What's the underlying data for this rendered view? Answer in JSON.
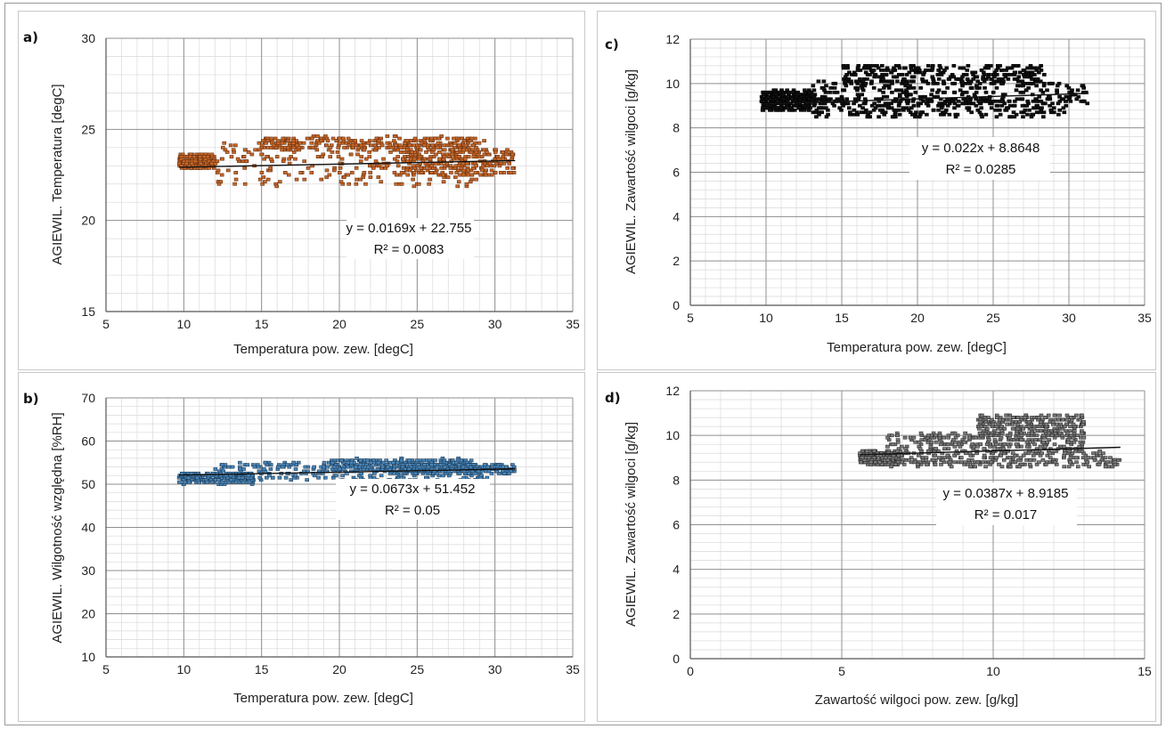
{
  "chart_data": [
    {
      "panel_label": "a)",
      "type": "scatter",
      "xlabel": "Temperatura pow. zew. [degC]",
      "ylabel": "AGIEWIL. Temperatura [degC]",
      "xlim": [
        5,
        35
      ],
      "ylim": [
        15,
        30
      ],
      "xticks": [
        5,
        10,
        15,
        20,
        25,
        30,
        35
      ],
      "yticks": [
        15,
        20,
        25,
        30
      ],
      "grid": true,
      "marker_color": "#c8682a",
      "marker_edge": "#6a3210",
      "equation": "y = 0.0169x + 22.755",
      "r_squared": "R² = 0.0083",
      "trendline": {
        "slope": 0.0169,
        "intercept": 22.755,
        "x_range": [
          9.7,
          31.3
        ]
      },
      "series": [
        {
          "cluster_x_range": [
            9.7,
            31.3
          ],
          "y_range": [
            21.9,
            24.6
          ],
          "bands": [
            {
              "x": [
                9.7,
                12.0
              ],
              "y": [
                22.9,
                23.6
              ]
            },
            {
              "x": [
                12.0,
                29.5
              ],
              "y": [
                21.9,
                24.4
              ]
            },
            {
              "x": [
                14.8,
                28.8
              ],
              "y": [
                23.9,
                24.6
              ]
            },
            {
              "x": [
                24.0,
                31.3
              ],
              "y": [
                22.5,
                23.9
              ]
            }
          ]
        }
      ]
    },
    {
      "panel_label": "b)",
      "type": "scatter",
      "xlabel": "Temperatura pow. zew. [degC]",
      "ylabel": "AGIEWIL. Wilgotność względna [%RH]",
      "xlim": [
        5,
        35
      ],
      "ylim": [
        10,
        70
      ],
      "xticks": [
        5,
        10,
        15,
        20,
        25,
        30,
        35
      ],
      "yticks": [
        10,
        20,
        30,
        40,
        50,
        60,
        70
      ],
      "grid": true,
      "marker_color": "#4a86b8",
      "marker_edge": "#1d3f5e",
      "equation": "y = 0.0673x + 51.452",
      "r_squared": "R² = 0.05",
      "trendline": {
        "slope": 0.0673,
        "intercept": 51.452,
        "x_range": [
          9.7,
          31.3
        ]
      },
      "series": [
        {
          "cluster_x_range": [
            9.7,
            31.3
          ],
          "y_range": [
            50.2,
            55.8
          ],
          "bands": [
            {
              "x": [
                9.7,
                14.5
              ],
              "y": [
                50.2,
                52.5
              ]
            },
            {
              "x": [
                12.0,
                29.5
              ],
              "y": [
                50.8,
                55.0
              ]
            },
            {
              "x": [
                19.0,
                28.5
              ],
              "y": [
                53.5,
                55.8
              ]
            },
            {
              "x": [
                24.0,
                31.3
              ],
              "y": [
                52.5,
                54.5
              ]
            }
          ]
        }
      ]
    },
    {
      "panel_label": "c)",
      "type": "scatter",
      "xlabel": "Temperatura pow. zew. [degC]",
      "ylabel": "AGIEWIL. Zawartość wilgoci [g/kg]",
      "xlim": [
        5,
        35
      ],
      "ylim": [
        0,
        12
      ],
      "xticks": [
        5,
        10,
        15,
        20,
        25,
        30,
        35
      ],
      "yticks": [
        0,
        2,
        4,
        6,
        8,
        10,
        12
      ],
      "grid": true,
      "marker_color": "#111111",
      "marker_edge": "#000000",
      "equation": "y = 0.022x + 8.8648",
      "r_squared": "R² = 0.0285",
      "trendline": {
        "slope": 0.022,
        "intercept": 8.8648,
        "x_range": [
          9.7,
          31.3
        ]
      },
      "series": [
        {
          "cluster_x_range": [
            9.7,
            31.3
          ],
          "y_range": [
            8.5,
            10.8
          ],
          "bands": [
            {
              "x": [
                9.7,
                13.0
              ],
              "y": [
                8.8,
                9.7
              ]
            },
            {
              "x": [
                13.0,
                30.0
              ],
              "y": [
                8.5,
                9.3
              ]
            },
            {
              "x": [
                13.0,
                31.3
              ],
              "y": [
                9.1,
                10.1
              ]
            },
            {
              "x": [
                15.0,
                28.5
              ],
              "y": [
                10.0,
                10.8
              ]
            }
          ]
        }
      ]
    },
    {
      "panel_label": "d)",
      "type": "scatter",
      "xlabel": "Zawartość wilgoci pow. zew. [g/kg]",
      "ylabel": "AGIEWIL. Zawartość wilgoci [g/kg]",
      "xlim": [
        0,
        15
      ],
      "ylim": [
        0,
        12
      ],
      "xticks": [
        0,
        5,
        10,
        15
      ],
      "yticks": [
        0,
        2,
        4,
        6,
        8,
        10,
        12
      ],
      "grid": true,
      "marker_color": "#7a7a7a",
      "marker_edge": "#2e2e2e",
      "equation": "y = 0.0387x + 8.9185",
      "r_squared": "R² = 0.017",
      "trendline": {
        "slope": 0.0387,
        "intercept": 8.9185,
        "x_range": [
          5.6,
          14.2
        ]
      },
      "series": [
        {
          "cluster_x_range": [
            5.6,
            14.2
          ],
          "y_range": [
            8.6,
            10.9
          ],
          "bands": [
            {
              "x": [
                5.6,
                7.0
              ],
              "y": [
                8.7,
                9.3
              ]
            },
            {
              "x": [
                6.5,
                14.2
              ],
              "y": [
                8.6,
                9.3
              ]
            },
            {
              "x": [
                6.5,
                13.0
              ],
              "y": [
                9.2,
                10.1
              ]
            },
            {
              "x": [
                9.5,
                13.0
              ],
              "y": [
                10.0,
                10.9
              ]
            }
          ]
        }
      ]
    }
  ]
}
